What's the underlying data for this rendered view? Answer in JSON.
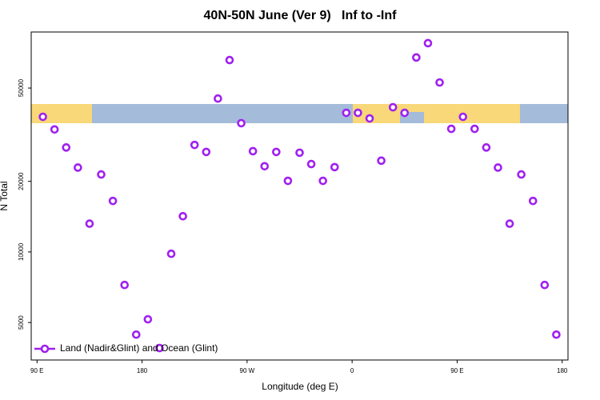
{
  "chart_data": {
    "type": "scatter",
    "title": "40N-50N June (Ver 9)   Inf to -Inf",
    "x_label": "Longitude (deg E)",
    "y_label": "N Total",
    "log_y": true,
    "color": "#a020f0",
    "legend_position": "bottom-left",
    "xlim": [
      -275,
      185
    ],
    "ylim": [
      3460,
      86700
    ],
    "xticks": [
      {
        "value": -270,
        "label": "90 E"
      },
      {
        "value": -180,
        "label": "180"
      },
      {
        "value": -90,
        "label": "90 W"
      },
      0,
      {
        "value": 90,
        "label": "90 E"
      },
      180
    ],
    "yticks": [
      5000,
      10000,
      20000,
      50000
    ],
    "series": [
      {
        "name": "Land (Nadir&Glint) and Ocean (Glint)",
        "color": "#a020f0",
        "x": [
          -265,
          -255,
          -245,
          -235,
          -225,
          -215,
          -205,
          -195,
          -185,
          -175,
          -165,
          -155,
          -145,
          -135,
          -125,
          -115,
          -105,
          -95,
          -85,
          -75,
          -65,
          -55,
          -45,
          -35,
          -25,
          -15,
          -5,
          5,
          15,
          25,
          35,
          45,
          55,
          65,
          75,
          85,
          95,
          105,
          115,
          125,
          135,
          145,
          155,
          165,
          175
        ],
        "values": [
          37700,
          33300,
          27900,
          22900,
          13200,
          21400,
          16500,
          7230,
          4440,
          5160,
          3890,
          9820,
          14200,
          28600,
          26700,
          45100,
          65800,
          35400,
          26900,
          23200,
          26700,
          20100,
          26500,
          23700,
          20100,
          23000,
          39200,
          39200,
          37100,
          24500,
          41400,
          39200,
          67500,
          77700,
          52800,
          33500,
          37700,
          33500,
          27900,
          22900,
          13200,
          21400,
          16500,
          7230,
          4440
        ]
      }
    ]
  }
}
